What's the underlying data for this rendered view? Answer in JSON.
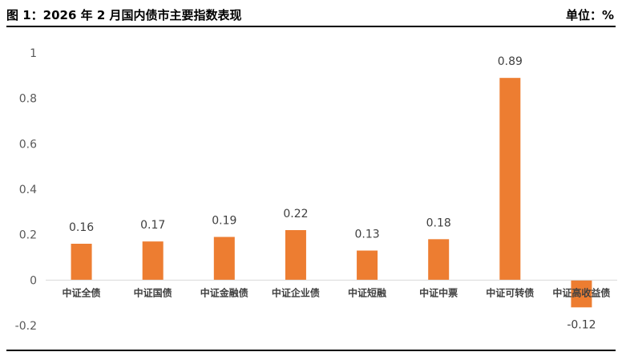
{
  "header": {
    "title": "图 1：2026 年 2 月国内债市主要指数表现",
    "unit": "单位：%"
  },
  "chart_data": {
    "type": "bar",
    "categories": [
      "中证全债",
      "中证国债",
      "中证金融债",
      "中证企业债",
      "中证短融",
      "中证中票",
      "中证可转债",
      "中证高收益债"
    ],
    "values": [
      0.16,
      0.17,
      0.19,
      0.22,
      0.13,
      0.18,
      0.89,
      -0.12
    ],
    "data_labels": [
      "0.16",
      "0.17",
      "0.19",
      "0.22",
      "0.13",
      "0.18",
      "0.89",
      "-0.12"
    ],
    "yticks": [
      "1",
      "0.8",
      "0.6",
      "0.4",
      "0.2",
      "0",
      "-0.2"
    ],
    "ytick_values": [
      1,
      0.8,
      0.6,
      0.4,
      0.2,
      0,
      -0.2
    ],
    "ylim": [
      -0.2,
      1
    ],
    "grid": false,
    "bar_color": "#ED7D31",
    "axis_color": "#D9D9D9"
  }
}
